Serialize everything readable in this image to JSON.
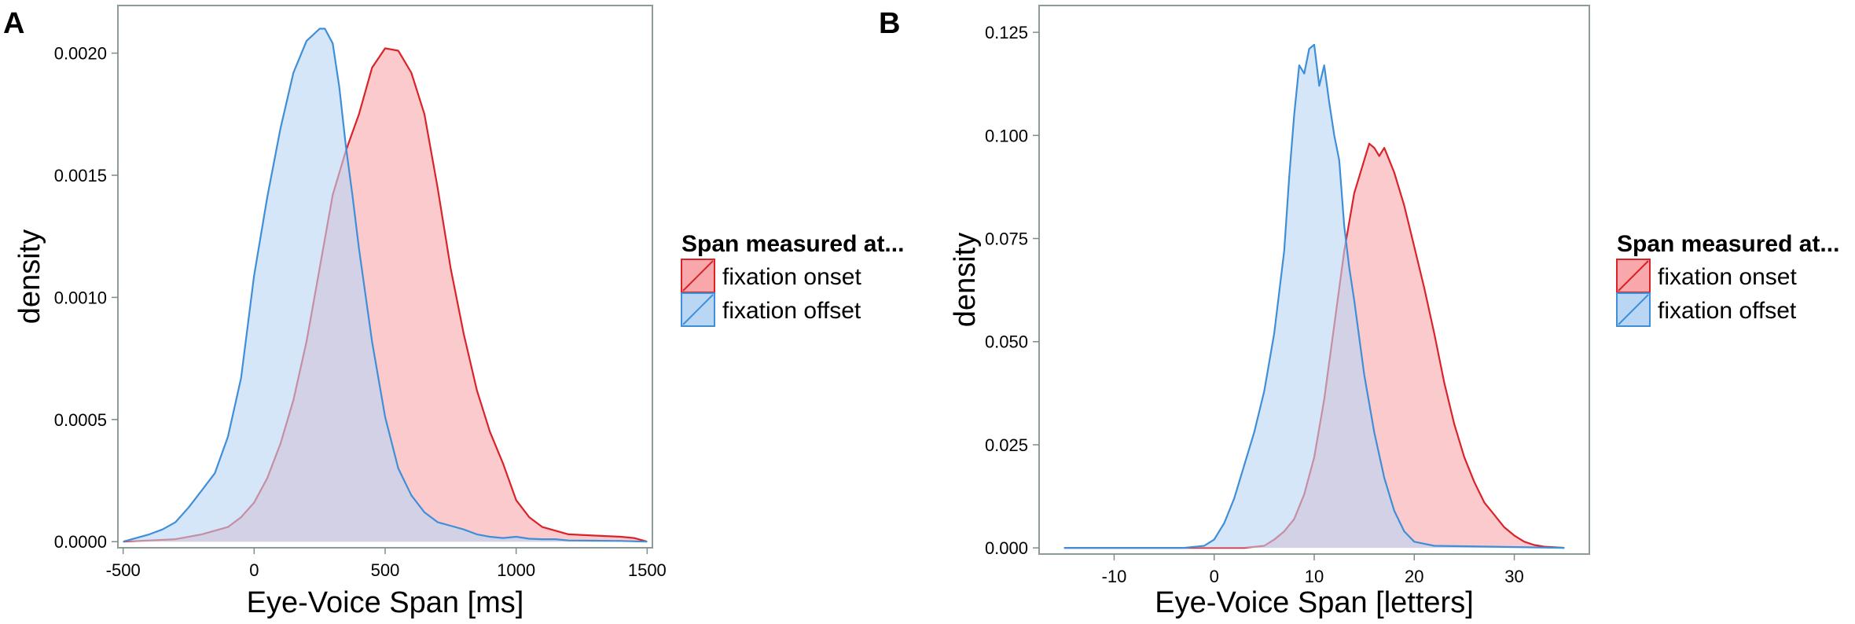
{
  "colors": {
    "onset_line": "#d9232a",
    "onset_fill": "#f8a7ab",
    "offset_line": "#3f8fd8",
    "offset_fill": "#b9d6f5",
    "panel_border": "#8c9a9a"
  },
  "chart_data": [
    {
      "type": "area",
      "panel_label": "A",
      "xlabel": "Eye-Voice Span [ms]",
      "ylabel": "density",
      "xlim": [
        -520,
        1520
      ],
      "ylim": [
        -2.5e-05,
        0.002195
      ],
      "xticks": [
        -500,
        0,
        500,
        1000,
        1500
      ],
      "xtick_labels": [
        "-500",
        "0",
        "500",
        "1000",
        "1500"
      ],
      "yticks": [
        0,
        0.0005,
        0.001,
        0.0015,
        0.002
      ],
      "ytick_labels": [
        "0.0000",
        "0.0005",
        "0.0010",
        "0.0015",
        "0.0020"
      ],
      "legend": {
        "title": "Span measured at...",
        "entries": [
          "fixation onset",
          "fixation offset"
        ],
        "position": "right"
      },
      "series": [
        {
          "name": "fixation onset",
          "x": [
            -500,
            -400,
            -300,
            -200,
            -100,
            -50,
            0,
            50,
            100,
            150,
            200,
            250,
            300,
            350,
            400,
            450,
            500,
            550,
            600,
            650,
            700,
            750,
            800,
            850,
            900,
            950,
            1000,
            1050,
            1100,
            1200,
            1300,
            1400,
            1450,
            1500
          ],
          "y": [
            0,
            5e-06,
            1e-05,
            3e-05,
            6e-05,
            0.0001,
            0.00016,
            0.00026,
            0.0004,
            0.00058,
            0.00082,
            0.00112,
            0.00142,
            0.0016,
            0.00175,
            0.00194,
            0.00202,
            0.00201,
            0.00192,
            0.00175,
            0.00145,
            0.00112,
            0.00085,
            0.00062,
            0.00045,
            0.00032,
            0.00017,
            0.0001,
            6e-05,
            3e-05,
            2.5e-05,
            2e-05,
            1.5e-05,
            0
          ]
        },
        {
          "name": "fixation offset",
          "x": [
            -500,
            -450,
            -400,
            -350,
            -300,
            -250,
            -200,
            -150,
            -100,
            -50,
            0,
            50,
            100,
            150,
            200,
            250,
            270,
            300,
            325,
            350,
            375,
            400,
            450,
            500,
            550,
            600,
            650,
            700,
            750,
            800,
            850,
            900,
            950,
            1000,
            1050,
            1100,
            1150,
            1200,
            1300,
            1400,
            1500
          ],
          "y": [
            0,
            1.5e-05,
            3e-05,
            5e-05,
            8e-05,
            0.00014,
            0.00021,
            0.00028,
            0.00043,
            0.00067,
            0.00109,
            0.00141,
            0.00169,
            0.00192,
            0.00205,
            0.0021,
            0.0021,
            0.00204,
            0.00186,
            0.00162,
            0.00142,
            0.0012,
            0.00082,
            0.00051,
            0.0003,
            0.00019,
            0.00012,
            8e-05,
            6.5e-05,
            5e-05,
            3e-05,
            2e-05,
            1.5e-05,
            2e-05,
            1.2e-05,
            1e-05,
            1e-05,
            5e-06,
            4e-06,
            3e-06,
            0
          ]
        }
      ]
    },
    {
      "type": "area",
      "panel_label": "B",
      "xlabel": "Eye-Voice Span [letters]",
      "ylabel": "density",
      "xlim": [
        -17.5,
        37.5
      ],
      "ylim": [
        -0.0015,
        0.1315
      ],
      "xticks": [
        -10,
        0,
        10,
        20,
        30
      ],
      "xtick_labels": [
        "-10",
        "0",
        "10",
        "20",
        "30"
      ],
      "yticks": [
        0,
        0.025,
        0.05,
        0.075,
        0.1,
        0.125
      ],
      "ytick_labels": [
        "0.000",
        "0.025",
        "0.050",
        "0.075",
        "0.100",
        "0.125"
      ],
      "legend": {
        "title": "Span measured at...",
        "entries": [
          "fixation onset",
          "fixation offset"
        ],
        "position": "right"
      },
      "series": [
        {
          "name": "fixation onset",
          "x": [
            -15,
            3,
            5,
            6,
            7,
            8,
            9,
            10,
            11,
            12,
            13,
            14,
            15,
            15.5,
            16,
            16.5,
            17,
            17.5,
            18,
            19,
            20,
            21,
            22,
            23,
            24,
            25,
            26,
            27,
            28,
            29,
            30,
            31,
            32,
            33,
            35
          ],
          "y": [
            0,
            0,
            0.0005,
            0.002,
            0.004,
            0.007,
            0.013,
            0.022,
            0.036,
            0.054,
            0.072,
            0.086,
            0.094,
            0.098,
            0.097,
            0.095,
            0.097,
            0.094,
            0.091,
            0.083,
            0.073,
            0.063,
            0.052,
            0.04,
            0.03,
            0.022,
            0.016,
            0.011,
            0.008,
            0.005,
            0.003,
            0.0015,
            0.0007,
            0.0003,
            0
          ]
        },
        {
          "name": "fixation offset",
          "x": [
            -15,
            -3,
            -1,
            0,
            1,
            2,
            3,
            4,
            5,
            6,
            7,
            7.5,
            8,
            8.5,
            9,
            9.5,
            10,
            10.5,
            11,
            11.5,
            12,
            12.5,
            13,
            13.5,
            14,
            15,
            16,
            17,
            18,
            19,
            20,
            22,
            35
          ],
          "y": [
            0,
            0,
            0.0005,
            0.002,
            0.006,
            0.012,
            0.02,
            0.028,
            0.038,
            0.052,
            0.072,
            0.09,
            0.105,
            0.117,
            0.115,
            0.121,
            0.122,
            0.112,
            0.117,
            0.108,
            0.1,
            0.094,
            0.078,
            0.068,
            0.06,
            0.042,
            0.028,
            0.017,
            0.009,
            0.004,
            0.0015,
            0.0005,
            0
          ]
        }
      ]
    }
  ]
}
